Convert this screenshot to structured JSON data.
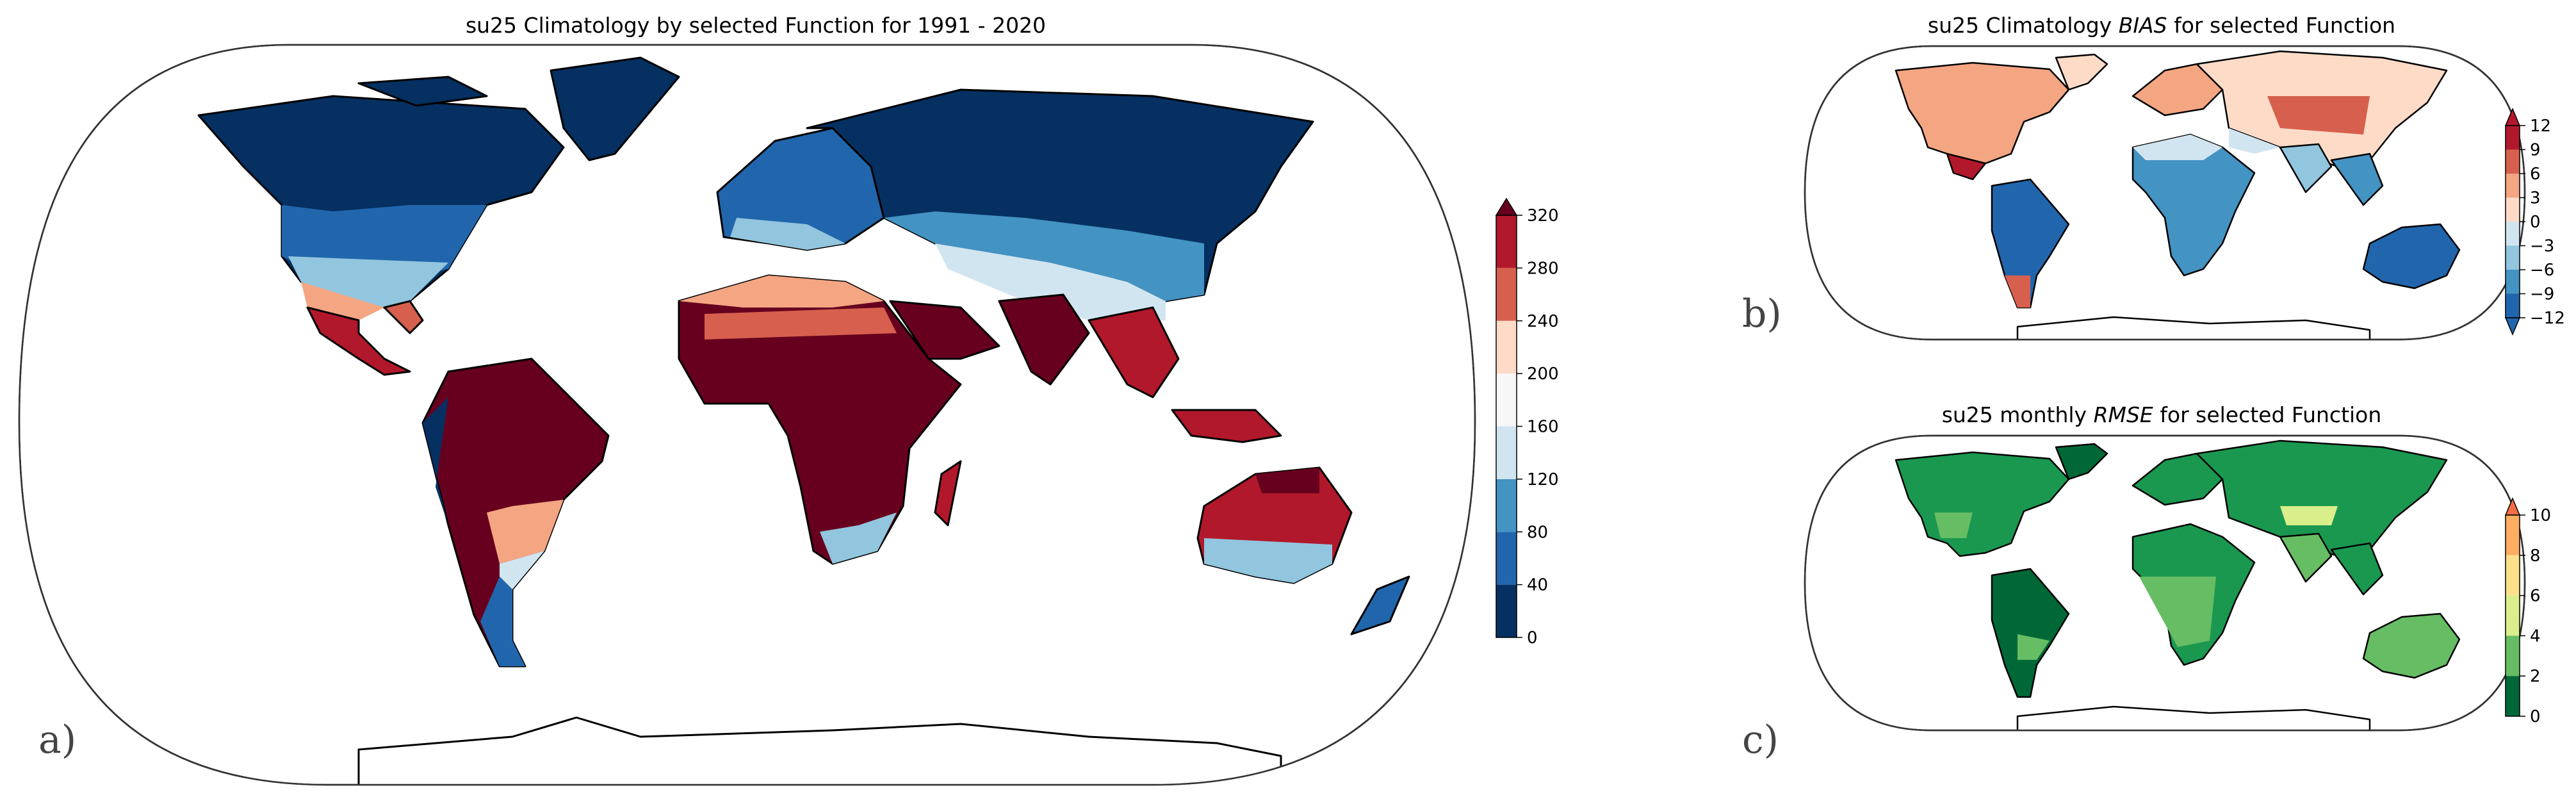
{
  "panel_a": {
    "tag": "a)",
    "title": "su25 Climatology by selected Function for 1991 - 2020",
    "colorbar": {
      "ticks": [
        "0",
        "40",
        "80",
        "120",
        "160",
        "200",
        "240",
        "280",
        "320"
      ],
      "colors": [
        "#053061",
        "#2166ac",
        "#4393c3",
        "#92c5de",
        "#d1e5f0",
        "#f7f7f7",
        "#fddbc7",
        "#f4a582",
        "#d6604d",
        "#b2182b",
        "#67001f"
      ],
      "extend": "max"
    }
  },
  "panel_b": {
    "tag": "b)",
    "title_pre": "su25 Climatology ",
    "title_italic": "BIAS",
    "title_post": " for selected Function",
    "colorbar": {
      "ticks": [
        "12",
        "9",
        "6",
        "3",
        "0",
        "−3",
        "−6",
        "−9",
        "−12"
      ],
      "colors": [
        "#b2182b",
        "#d6604d",
        "#f4a582",
        "#fddbc7",
        "#d1e5f0",
        "#92c5de",
        "#4393c3",
        "#2166ac"
      ],
      "extend": "both"
    }
  },
  "panel_c": {
    "tag": "c)",
    "title_pre": "su25 monthly ",
    "title_italic": "RMSE",
    "title_post": " for selected Function",
    "colorbar": {
      "ticks": [
        "10",
        "8",
        "6",
        "4",
        "2",
        "0"
      ],
      "colors": [
        "#f46d43",
        "#fdae61",
        "#fee08b",
        "#d9ef8b",
        "#66bd63",
        "#1a9850",
        "#006837"
      ],
      "extend": "max"
    }
  }
}
